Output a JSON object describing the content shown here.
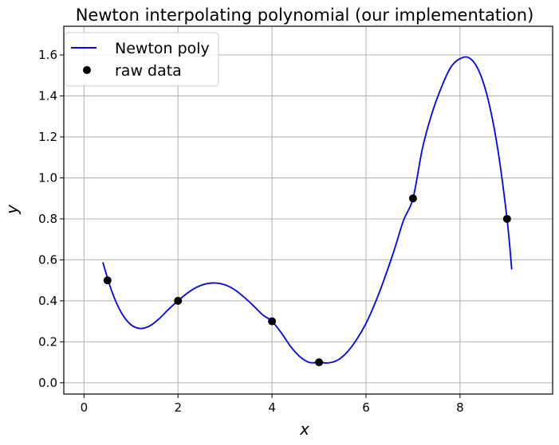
{
  "chart_data": {
    "type": "line",
    "title": "Newton interpolating polynomial (our implementation)",
    "xlabel": "x",
    "ylabel": "y",
    "xlim": [
      -0.43,
      9.97
    ],
    "ylim": [
      -0.055,
      1.74
    ],
    "xticks": [
      0,
      2,
      4,
      6,
      8
    ],
    "yticks": [
      0.0,
      0.2,
      0.4,
      0.6,
      0.8,
      1.0,
      1.2,
      1.4,
      1.6
    ],
    "grid": true,
    "legend_position": "top-left",
    "series": [
      {
        "name": "Newton poly",
        "kind": "line",
        "color": "#0000ff",
        "x": [
          0.4,
          0.6,
          0.8,
          1.0,
          1.2,
          1.4,
          1.6,
          1.8,
          2.0,
          2.2,
          2.4,
          2.6,
          2.8,
          3.0,
          3.2,
          3.4,
          3.6,
          3.8,
          4.0,
          4.2,
          4.4,
          4.6,
          4.8,
          5.0,
          5.2,
          5.4,
          5.6,
          5.8,
          6.0,
          6.2,
          6.4,
          6.6,
          6.8,
          7.0,
          7.2,
          7.4,
          7.6,
          7.8,
          8.0,
          8.2,
          8.4,
          8.6,
          8.8,
          9.0,
          9.1
        ],
        "y": [
          0.588,
          0.441,
          0.34,
          0.283,
          0.265,
          0.278,
          0.313,
          0.359,
          0.4,
          0.438,
          0.467,
          0.483,
          0.487,
          0.478,
          0.455,
          0.419,
          0.377,
          0.332,
          0.3,
          0.243,
          0.176,
          0.126,
          0.099,
          0.1,
          0.097,
          0.111,
          0.15,
          0.211,
          0.29,
          0.393,
          0.514,
          0.648,
          0.794,
          0.9,
          1.144,
          1.313,
          1.44,
          1.539,
          1.582,
          1.585,
          1.523,
          1.38,
          1.144,
          0.8,
          0.553
        ]
      },
      {
        "name": "raw data",
        "kind": "markers",
        "color": "#000000",
        "x": [
          0.5,
          2,
          4,
          5,
          7,
          9
        ],
        "y": [
          0.5,
          0.4,
          0.3,
          0.1,
          0.9,
          0.8
        ]
      }
    ]
  }
}
